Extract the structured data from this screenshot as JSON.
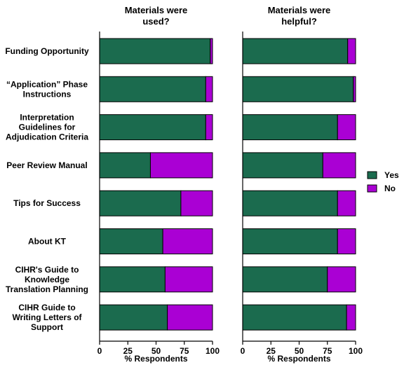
{
  "chart_data": {
    "type": "bar",
    "orientation": "horizontal",
    "stacked": true,
    "categories": [
      [
        "Funding  Opportunity"
      ],
      [
        "“Application” Phase",
        "Instructions"
      ],
      [
        "Interpretation",
        "Guidelines for",
        "Adjudication Criteria"
      ],
      [
        "Peer Review Manual"
      ],
      [
        "Tips for Success"
      ],
      [
        "About KT"
      ],
      [
        "CIHR's Guide to",
        "Knowledge",
        "Translation Planning"
      ],
      [
        "CIHR Guide  to",
        "Writing Letters of",
        "Support"
      ]
    ],
    "panels": [
      {
        "title": [
          "Materials were",
          "used?"
        ],
        "xlabel": "% Respondents",
        "series": [
          {
            "name": "Yes",
            "values": [
              98,
              94,
              94,
              45,
              72,
              56,
              58,
              60
            ]
          },
          {
            "name": "No",
            "values": [
              2,
              6,
              6,
              55,
              28,
              44,
              42,
              40
            ]
          }
        ]
      },
      {
        "title": [
          "Materials were",
          "helpful?"
        ],
        "xlabel": "% Respondents",
        "series": [
          {
            "name": "Yes",
            "values": [
              93,
              98,
              84,
              71,
              84,
              84,
              75,
              92
            ]
          },
          {
            "name": "No",
            "values": [
              7,
              2,
              16,
              29,
              16,
              16,
              25,
              8
            ]
          }
        ]
      }
    ],
    "xlim": [
      0,
      100
    ],
    "xticks": [
      "0",
      "25",
      "50",
      "75",
      "100"
    ],
    "legend": {
      "placement": "right",
      "entries": [
        "Yes",
        "No"
      ]
    },
    "colors": {
      "Yes": "#1b6b4e",
      "No": "#aa00d4"
    },
    "grid": false
  }
}
